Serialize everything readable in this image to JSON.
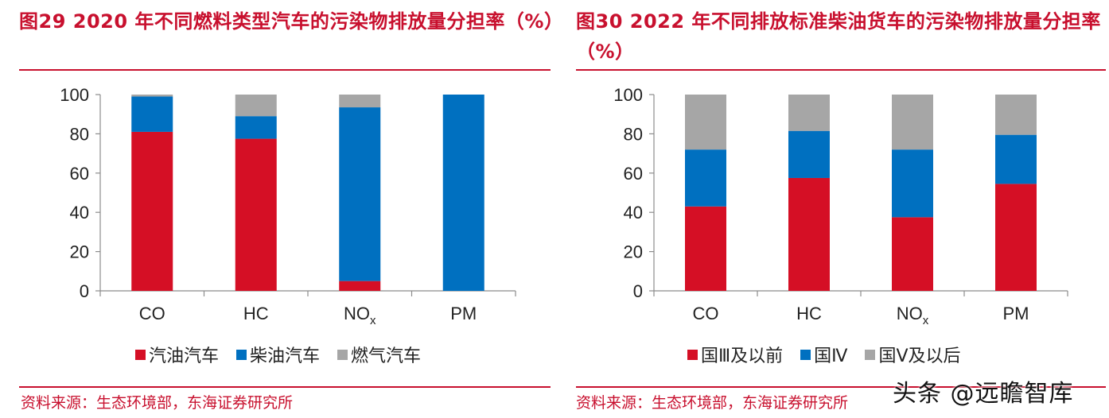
{
  "charts": {
    "left": {
      "title": "图29  2020 年不同燃料类型汽车的污染物排放量分担率（%）",
      "source": "资料来源：生态环境部，东海证券研究所"
    },
    "right": {
      "title": "图30  2022 年不同排放标准柴油货车的污染物排放量分担率（%）",
      "source": "资料来源：生态环境部，东海证券研究所"
    }
  },
  "watermark": "头条 @远瞻智库",
  "chart_data": [
    {
      "type": "bar",
      "stacked": true,
      "title": "图29  2020 年不同燃料类型汽车的污染物排放量分担率（%）",
      "categories": [
        "CO",
        "HC",
        "NOx",
        "PM"
      ],
      "category_display": [
        {
          "main": "CO",
          "sub": ""
        },
        {
          "main": "HC",
          "sub": ""
        },
        {
          "main": "NO",
          "sub": "x"
        },
        {
          "main": "PM",
          "sub": ""
        }
      ],
      "series": [
        {
          "name": "汽油汽车",
          "color": "#d50f25",
          "values": [
            81,
            77.5,
            5,
            0
          ]
        },
        {
          "name": "柴油汽车",
          "color": "#0070c0",
          "values": [
            18,
            11.5,
            88.5,
            100
          ]
        },
        {
          "name": "燃气汽车",
          "color": "#a6a6a6",
          "values": [
            1,
            11,
            6.5,
            0
          ]
        }
      ],
      "ylim": [
        0,
        100
      ],
      "yticks": [
        0,
        20,
        40,
        60,
        80,
        100
      ],
      "legend_position": "bottom",
      "grid": false
    },
    {
      "type": "bar",
      "stacked": true,
      "title": "图30  2022 年不同排放标准柴油货车的污染物排放量分担率（%）",
      "categories": [
        "CO",
        "HC",
        "NOx",
        "PM"
      ],
      "category_display": [
        {
          "main": "CO",
          "sub": ""
        },
        {
          "main": "HC",
          "sub": ""
        },
        {
          "main": "NO",
          "sub": "x"
        },
        {
          "main": "PM",
          "sub": ""
        }
      ],
      "series": [
        {
          "name": "国Ⅲ及以前",
          "color": "#d50f25",
          "values": [
            43,
            57.5,
            37.5,
            54.5
          ]
        },
        {
          "name": "国Ⅳ",
          "color": "#0070c0",
          "values": [
            29,
            24,
            34.5,
            25
          ]
        },
        {
          "name": "国Ⅴ及以后",
          "color": "#a6a6a6",
          "values": [
            28,
            18.5,
            28,
            20.5
          ]
        }
      ],
      "ylim": [
        0,
        100
      ],
      "yticks": [
        0,
        20,
        40,
        60,
        80,
        100
      ],
      "legend_position": "bottom",
      "grid": false
    }
  ]
}
